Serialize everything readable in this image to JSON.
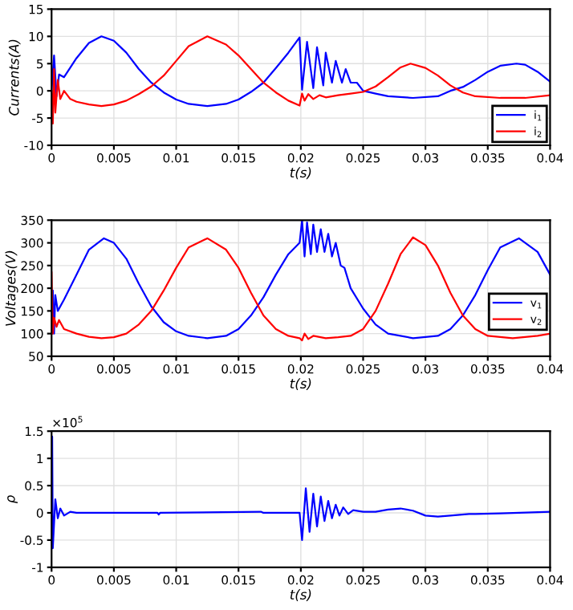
{
  "chart_data": [
    {
      "type": "line",
      "xlabel": "t(s)",
      "ylabel": "Currents(A)",
      "xlim": [
        0,
        0.04
      ],
      "ylim": [
        -10,
        15
      ],
      "xticks": [
        0,
        0.005,
        0.01,
        0.015,
        0.02,
        0.025,
        0.03,
        0.035,
        0.04
      ],
      "yticks": [
        -10,
        -5,
        0,
        5,
        10,
        15
      ],
      "grid": true,
      "legend": "bottom right",
      "series": [
        {
          "name": "i$_{1}$",
          "color": "#0000ff",
          "x": [
            0,
            0.0002,
            0.0004,
            0.0006,
            0.001,
            0.002,
            0.003,
            0.004,
            0.005,
            0.006,
            0.007,
            0.008,
            0.009,
            0.01,
            0.011,
            0.0125,
            0.014,
            0.015,
            0.016,
            0.017,
            0.018,
            0.019,
            0.0199,
            0.0201,
            0.0205,
            0.021,
            0.0213,
            0.0218,
            0.022,
            0.0225,
            0.0228,
            0.0233,
            0.0236,
            0.024,
            0.0245,
            0.025,
            0.026,
            0.027,
            0.029,
            0.031,
            0.032,
            0.033,
            0.034,
            0.035,
            0.036,
            0.0373,
            0.038,
            0.039,
            0.04
          ],
          "values": [
            0,
            6.5,
            -1,
            3,
            2.5,
            6,
            8.8,
            10,
            9.2,
            7,
            4,
            1.5,
            -0.3,
            -1.6,
            -2.4,
            -2.8,
            -2.4,
            -1.6,
            -0.2,
            1.5,
            4.2,
            7,
            9.8,
            0.2,
            9,
            0.5,
            8,
            1,
            7,
            1.5,
            5.5,
            1.5,
            4,
            1.5,
            1.5,
            0,
            -0.5,
            -1,
            -1.3,
            -1,
            0,
            0.7,
            2,
            3.5,
            4.6,
            5,
            4.8,
            3.5,
            1.7
          ]
        },
        {
          "name": "i$_{2}$",
          "color": "#ff0000",
          "x": [
            0,
            0.0001,
            0.0002,
            0.0003,
            0.0005,
            0.0007,
            0.001,
            0.0015,
            0.002,
            0.003,
            0.004,
            0.005,
            0.006,
            0.007,
            0.008,
            0.009,
            0.01,
            0.011,
            0.0125,
            0.014,
            0.015,
            0.016,
            0.017,
            0.018,
            0.019,
            0.0199,
            0.0201,
            0.0203,
            0.0206,
            0.021,
            0.0215,
            0.022,
            0.023,
            0.024,
            0.025,
            0.026,
            0.027,
            0.028,
            0.0288,
            0.03,
            0.031,
            0.032,
            0.033,
            0.034,
            0.036,
            0.038,
            0.04
          ],
          "values": [
            0,
            -6,
            4,
            -4,
            2,
            -1.5,
            0,
            -1.5,
            -2,
            -2.5,
            -2.8,
            -2.5,
            -1.8,
            -0.6,
            0.8,
            2.8,
            5.5,
            8.2,
            10,
            8.5,
            6.5,
            4,
            1.5,
            -0.3,
            -1.8,
            -2.7,
            -0.5,
            -1.8,
            -0.6,
            -1.5,
            -0.8,
            -1.2,
            -0.8,
            -0.5,
            -0.2,
            0.8,
            2.5,
            4.3,
            5,
            4.2,
            2.8,
            1,
            -0.3,
            -1,
            -1.3,
            -1.3,
            -0.8
          ]
        }
      ]
    },
    {
      "type": "line",
      "xlabel": "t(s)",
      "ylabel": "Voltages(V)",
      "xlim": [
        0,
        0.04
      ],
      "ylim": [
        50,
        350
      ],
      "xticks": [
        0,
        0.005,
        0.01,
        0.015,
        0.02,
        0.025,
        0.03,
        0.035,
        0.04
      ],
      "yticks": [
        50,
        100,
        150,
        200,
        250,
        300,
        350
      ],
      "grid": true,
      "legend": "bottom right",
      "series": [
        {
          "name": "v$_{1}$",
          "color": "#0000ff",
          "x": [
            0,
            0.0001,
            0.0002,
            0.0003,
            0.0005,
            0.001,
            0.002,
            0.003,
            0.0042,
            0.005,
            0.006,
            0.007,
            0.008,
            0.009,
            0.01,
            0.011,
            0.0125,
            0.014,
            0.015,
            0.016,
            0.017,
            0.018,
            0.019,
            0.0199,
            0.0201,
            0.0203,
            0.0205,
            0.0208,
            0.021,
            0.0213,
            0.0216,
            0.0219,
            0.0222,
            0.0225,
            0.0228,
            0.0232,
            0.0235,
            0.024,
            0.025,
            0.026,
            0.027,
            0.029,
            0.031,
            0.032,
            0.033,
            0.034,
            0.035,
            0.036,
            0.0375,
            0.039,
            0.04
          ],
          "values": [
            100,
            195,
            100,
            185,
            150,
            175,
            230,
            285,
            310,
            300,
            265,
            210,
            160,
            125,
            105,
            95,
            90,
            95,
            110,
            140,
            180,
            230,
            275,
            300,
            350,
            270,
            345,
            275,
            340,
            280,
            330,
            280,
            320,
            270,
            300,
            250,
            245,
            200,
            155,
            120,
            100,
            90,
            95,
            110,
            140,
            185,
            240,
            290,
            310,
            280,
            230
          ]
        },
        {
          "name": "v$_{2}$",
          "color": "#ff0000",
          "x": [
            0,
            0.0001,
            0.0002,
            0.0004,
            0.0006,
            0.001,
            0.002,
            0.003,
            0.004,
            0.005,
            0.006,
            0.007,
            0.008,
            0.009,
            0.01,
            0.011,
            0.0125,
            0.014,
            0.015,
            0.016,
            0.017,
            0.018,
            0.019,
            0.0199,
            0.0201,
            0.0203,
            0.0206,
            0.021,
            0.022,
            0.023,
            0.024,
            0.025,
            0.026,
            0.027,
            0.028,
            0.029,
            0.03,
            0.031,
            0.032,
            0.033,
            0.034,
            0.035,
            0.037,
            0.039,
            0.04
          ],
          "values": [
            235,
            100,
            135,
            115,
            130,
            110,
            100,
            93,
            90,
            92,
            100,
            120,
            150,
            195,
            245,
            290,
            310,
            285,
            245,
            190,
            140,
            110,
            95,
            90,
            85,
            100,
            88,
            95,
            90,
            92,
            95,
            110,
            150,
            210,
            275,
            312,
            295,
            250,
            190,
            140,
            110,
            95,
            90,
            95,
            100
          ]
        }
      ]
    },
    {
      "type": "line",
      "xlabel": "t(s)",
      "ylabel": "ρ",
      "annotations": [
        "×10$^{5}$"
      ],
      "xlim": [
        0,
        0.04
      ],
      "ylim": [
        -1,
        1.5
      ],
      "xticks": [
        0,
        0.005,
        0.01,
        0.015,
        0.02,
        0.025,
        0.03,
        0.035,
        0.04
      ],
      "yticks": [
        -1,
        -0.5,
        0,
        0.5,
        1,
        1.5
      ],
      "grid": true,
      "series": [
        {
          "color": "#0000ff",
          "x": [
            0,
            5e-05,
            0.0001,
            0.0003,
            0.0005,
            0.0007,
            0.001,
            0.0015,
            0.002,
            0.0085,
            0.0086,
            0.0087,
            0.0168,
            0.017,
            0.0199,
            0.0201,
            0.0204,
            0.0207,
            0.021,
            0.0213,
            0.0216,
            0.0219,
            0.0222,
            0.0225,
            0.0228,
            0.0231,
            0.0234,
            0.0238,
            0.0242,
            0.025,
            0.026,
            0.027,
            0.028,
            0.029,
            0.03,
            0.031,
            0.032,
            0.0335,
            0.034,
            0.036,
            0.04
          ],
          "values": [
            0,
            1.4,
            -0.65,
            0.25,
            -0.1,
            0.08,
            -0.05,
            0.02,
            0,
            0,
            -0.03,
            0,
            0.02,
            0,
            0,
            -0.5,
            0.45,
            -0.35,
            0.35,
            -0.25,
            0.3,
            -0.15,
            0.22,
            -0.1,
            0.15,
            -0.05,
            0.1,
            -0.02,
            0.05,
            0.02,
            0.02,
            0.06,
            0.08,
            0.04,
            -0.05,
            -0.07,
            -0.05,
            -0.02,
            -0.02,
            -0.01,
            0.02
          ]
        }
      ]
    }
  ]
}
